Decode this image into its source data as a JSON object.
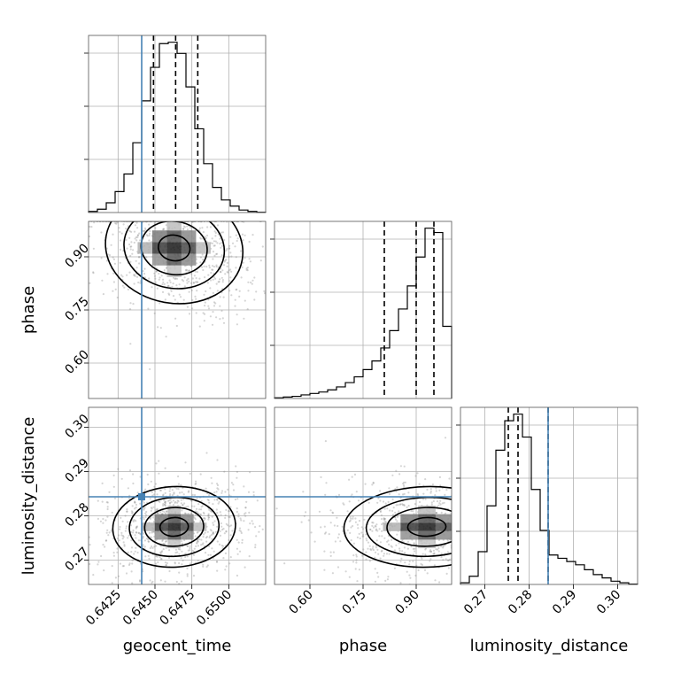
{
  "chart_data": {
    "type": "corner",
    "parameters": [
      "geocent_time",
      "phase",
      "luminosity_distance"
    ],
    "labels": {
      "geocent_time": "geocent_time",
      "phase": "phase",
      "luminosity_distance": "luminosity_distance"
    },
    "ranges": {
      "geocent_time": [
        0.6405,
        0.6525
      ],
      "phase": [
        0.5,
        1.0
      ],
      "luminosity_distance": [
        0.2645,
        0.3045
      ]
    },
    "ticks": {
      "geocent_time": [
        "0.6425",
        "0.6450",
        "0.6475",
        "0.6500"
      ],
      "phase": [
        "0.60",
        "0.75",
        "0.90"
      ],
      "luminosity_distance": [
        "0.27",
        "0.28",
        "0.29",
        "0.30"
      ]
    },
    "truths": {
      "geocent_time": 0.6441,
      "phase": null,
      "luminosity_distance": 0.2843
    },
    "quantiles": {
      "geocent_time": [
        0.6449,
        0.6464,
        0.6479
      ],
      "phase": [
        0.81,
        0.9,
        0.95
      ],
      "luminosity_distance": [
        0.2753,
        0.2775,
        0.2843
      ]
    },
    "histograms": {
      "geocent_time": {
        "bin_edges": [
          0.6405,
          0.6411,
          0.6417,
          0.6423,
          0.6429,
          0.6435,
          0.6441,
          0.6447,
          0.6453,
          0.6459,
          0.6465,
          0.6471,
          0.6477,
          0.6483,
          0.6489,
          0.6495,
          0.6501,
          0.6507,
          0.6513,
          0.6519,
          0.6525
        ],
        "counts": [
          0.4,
          1.2,
          3.5,
          7.5,
          13.8,
          25.0,
          40.0,
          52.0,
          60.5,
          61.0,
          57.0,
          45.0,
          30.0,
          17.5,
          9.0,
          4.5,
          2.3,
          0.9,
          0.4,
          0.1
        ]
      },
      "phase": {
        "bin_edges": [
          0.5,
          0.525,
          0.55,
          0.575,
          0.6,
          0.625,
          0.65,
          0.675,
          0.7,
          0.725,
          0.75,
          0.775,
          0.8,
          0.825,
          0.85,
          0.875,
          0.9,
          0.925,
          0.95,
          0.975,
          1.0
        ],
        "counts": [
          0.5,
          1.0,
          1.5,
          2.5,
          3.5,
          4.5,
          6.0,
          8.0,
          11.0,
          15.0,
          20.0,
          26.0,
          35.0,
          47.0,
          62.0,
          78.0,
          98.0,
          118.0,
          115.0,
          50.0
        ]
      },
      "luminosity_distance": {
        "bin_edges": [
          0.2645,
          0.2665,
          0.2685,
          0.2705,
          0.2725,
          0.2745,
          0.2765,
          0.2785,
          0.2805,
          0.2825,
          0.2845,
          0.2865,
          0.2885,
          0.2905,
          0.2925,
          0.2945,
          0.2965,
          0.2985,
          0.3005,
          0.3025,
          0.3045
        ],
        "counts": [
          1.0,
          5.0,
          20.0,
          48.0,
          82.0,
          100.0,
          104.0,
          90.0,
          58.0,
          33.0,
          18.0,
          16.0,
          14.0,
          12.0,
          9.0,
          6.0,
          4.0,
          2.0,
          1.0,
          0.2
        ]
      }
    },
    "posterior_2d": [
      {
        "x": "geocent_time",
        "y": "phase",
        "center": [
          0.6463,
          0.925
        ],
        "spread": [
          0.0018,
          0.06
        ],
        "corr": -0.35
      },
      {
        "x": "geocent_time",
        "y": "luminosity_distance",
        "center": [
          0.6463,
          0.2775
        ],
        "spread": [
          0.0016,
          0.0035
        ],
        "corr": 0.1
      },
      {
        "x": "phase",
        "y": "luminosity_distance",
        "center": [
          0.93,
          0.2775
        ],
        "spread": [
          0.09,
          0.0035
        ],
        "corr": 0.05
      }
    ]
  }
}
